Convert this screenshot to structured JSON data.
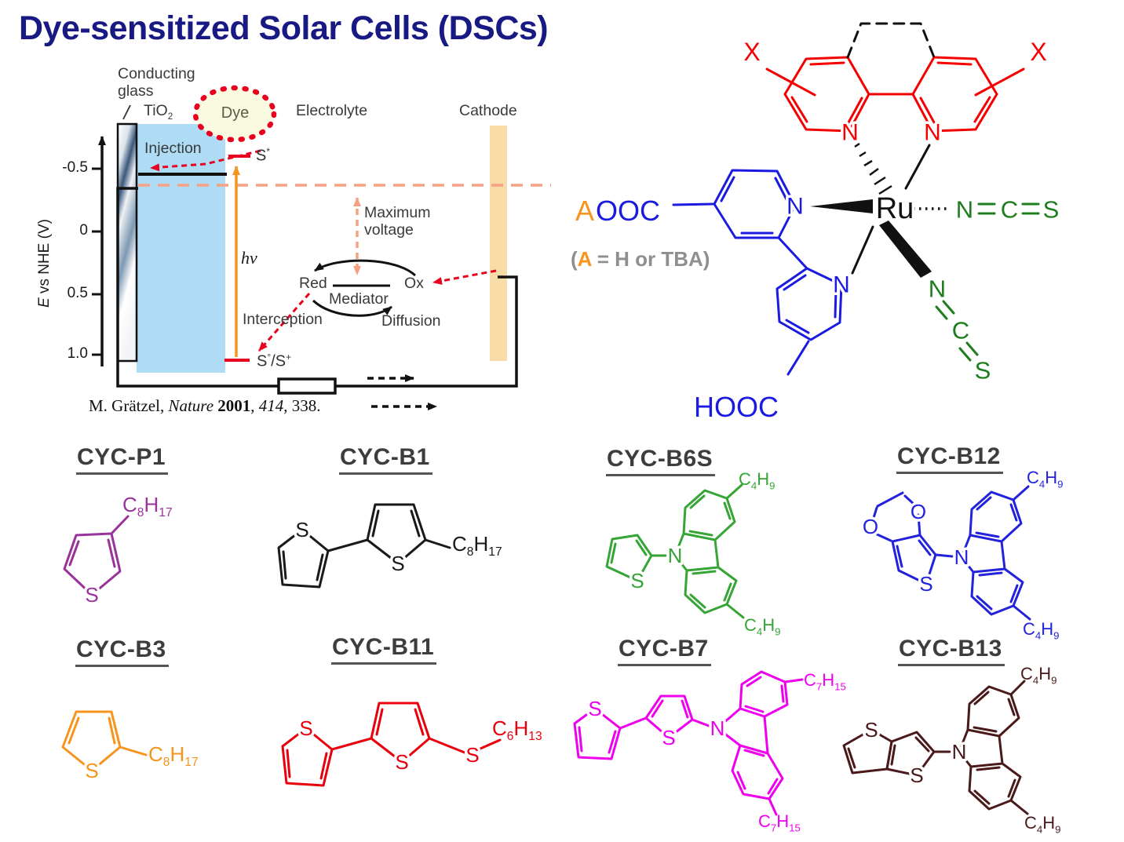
{
  "title": "Dye-sensitized Solar Cells (DSCs)",
  "colors": {
    "title": "#191984",
    "ligand_red": "#f50000",
    "ligand_blue": "#1a1ae0",
    "ncs_green": "#1e7d1e",
    "counterion_orange": "#f7941d",
    "legend_gray": "#8f8f8f",
    "tio2_fill": "#aedcf5",
    "cathode_fill": "#f8dca8",
    "dye_fill": "#fafae0",
    "dye_border": "#e8001e",
    "voltage_dash": "#f5a284",
    "hv_arrow": "#f7941d"
  },
  "diagram": {
    "conducting_glass": "Conducting\nglass",
    "tio2": "TiO2",
    "dye": "Dye",
    "electrolyte": "Electrolyte",
    "cathode": "Cathode",
    "injection": "Injection",
    "s_star": "S*",
    "hv": "hν",
    "max_voltage": "Maximum\nvoltage",
    "red": "Red",
    "ox": "Ox",
    "mediator": "Mediator",
    "interception": "Interception",
    "diffusion": "Diffusion",
    "s_ground": "S°/S+",
    "axis_e": "E",
    "axis_rest": " vs NHE (V)",
    "ticks": [
      "-0.5",
      "0",
      "0.5",
      "1.0"
    ],
    "citation": {
      "author": "M. Grätzel, ",
      "journal": "Nature ",
      "year": "2001",
      "c1": ", ",
      "volume": "414",
      "c2": ", 338."
    }
  },
  "complex": {
    "x_left": "X",
    "x_right": "X",
    "n_left": "N",
    "n_right": "N",
    "ru": "Ru",
    "ncs_h": {
      "n": "N",
      "c": "C",
      "s": "S"
    },
    "ncs_d": {
      "n": "N",
      "c": "C",
      "s": "S"
    },
    "a": "A",
    "ooc": "OOC",
    "hooc": "HOOC",
    "n_py_top": "N",
    "n_py_bottom": "N",
    "legend": {
      "open": "(",
      "a": "A",
      "rest": " = H or TBA)"
    }
  },
  "molecules": {
    "cycp1": {
      "name": "CYC-P1",
      "color": "#993399",
      "s": "S",
      "alkyl": "C8H17"
    },
    "cycb1": {
      "name": "CYC-B1",
      "color": "#1a1a1a",
      "s1": "S",
      "s2": "S",
      "alkyl": "C8H17"
    },
    "cycb6s": {
      "name": "CYC-B6S",
      "color": "#35a535",
      "s": "S",
      "n": "N",
      "alkyl_top": "C4H9",
      "alkyl_bottom": "C4H9"
    },
    "cycb12": {
      "name": "CYC-B12",
      "color": "#2222dd",
      "o1": "O",
      "o2": "O",
      "s": "S",
      "n": "N",
      "alkyl_top": "C4H9",
      "alkyl_bottom": "C4H9"
    },
    "cycb3": {
      "name": "CYC-B3",
      "color": "#f7941d",
      "s": "S",
      "alkyl": "C8H17"
    },
    "cycb11": {
      "name": "CYC-B11",
      "color": "#e8000d",
      "s1": "S",
      "s2": "S",
      "s3": "S",
      "alkyl": "C6H13"
    },
    "cycb7": {
      "name": "CYC-B7",
      "color": "#ee00ee",
      "s1": "S",
      "s2": "S",
      "n": "N",
      "alkyl_top": "C7H15",
      "alkyl_bottom": "C7H15"
    },
    "cycb13": {
      "name": "CYC-B13",
      "color": "#4a1a1a",
      "s1": "S",
      "s2": "S",
      "n": "N",
      "alkyl_top": "C4H9",
      "alkyl_bottom": "C4H9"
    }
  }
}
